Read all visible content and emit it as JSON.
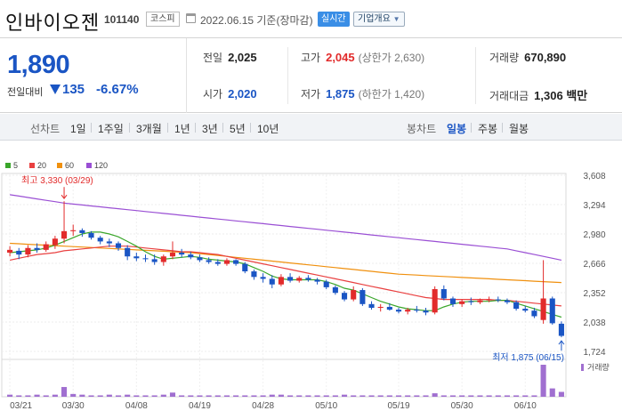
{
  "header": {
    "stock_name": "인바이오젠",
    "stock_code": "101140",
    "market": "코스피",
    "date": "2022.06.15 기준(장마감)",
    "realtime_label": "실시간",
    "company_info_label": "기업개요"
  },
  "quote": {
    "price": "1,890",
    "change_label": "전일대비",
    "change_value": "135",
    "change_pct": "-6.67%",
    "prev_close_label": "전일",
    "prev_close": "2,025",
    "open_label": "시가",
    "open": "2,020",
    "high_label": "고가",
    "high": "2,045",
    "upper_limit": "(상한가 2,630)",
    "low_label": "저가",
    "low": "1,875",
    "lower_limit": "(하한가 1,420)",
    "volume_label": "거래량",
    "volume": "670,890",
    "amount_label": "거래대금",
    "amount": "1,306 백만"
  },
  "period_tabs": {
    "line_label": "선차트",
    "items": [
      "1일",
      "1주일",
      "3개월",
      "1년",
      "3년",
      "5년",
      "10년"
    ],
    "candle_label": "봉차트",
    "candle_items": [
      "일봉",
      "주봉",
      "월봉"
    ],
    "active_candle": "일봉"
  },
  "colors": {
    "up": "#e22b2b",
    "down": "#1a55c4",
    "ma5": "#3aa62a",
    "ma20": "#e94040",
    "ma60": "#f0900e",
    "ma120": "#9a4fd4",
    "volume": "#a06fd0"
  },
  "chart_data": {
    "type": "candlestick",
    "legend": [
      {
        "name": "5",
        "color": "#3aa62a"
      },
      {
        "name": "20",
        "color": "#e94040"
      },
      {
        "name": "60",
        "color": "#f0900e"
      },
      {
        "name": "120",
        "color": "#9a4fd4"
      }
    ],
    "y_ticks": [
      3608,
      3294,
      2980,
      2666,
      2352,
      2038,
      1724
    ],
    "ylim": [
      1724,
      3608
    ],
    "x_ticks": [
      "03/21",
      "03/30",
      "04/08",
      "04/19",
      "04/28",
      "05/10",
      "05/19",
      "05/30",
      "06/10"
    ],
    "annotation_high": "최고 3,330 (03/29)",
    "annotation_low": "최저 1,875 (06/15)",
    "volume_label": "거래량",
    "candles": [
      [
        2780,
        2850,
        2740,
        2810
      ],
      [
        2800,
        2830,
        2710,
        2760
      ],
      [
        2760,
        2860,
        2730,
        2830
      ],
      [
        2830,
        2880,
        2780,
        2810
      ],
      [
        2810,
        2900,
        2790,
        2870
      ],
      [
        2860,
        2960,
        2820,
        2930
      ],
      [
        2930,
        3330,
        2880,
        3010
      ],
      [
        3010,
        3080,
        2960,
        3020
      ],
      [
        3020,
        3040,
        2950,
        2990
      ],
      [
        2990,
        3010,
        2920,
        2940
      ],
      [
        2940,
        2960,
        2870,
        2900
      ],
      [
        2900,
        2930,
        2840,
        2880
      ],
      [
        2880,
        2900,
        2800,
        2830
      ],
      [
        2830,
        2860,
        2700,
        2740
      ],
      [
        2740,
        2780,
        2690,
        2720
      ],
      [
        2720,
        2760,
        2680,
        2710
      ],
      [
        2710,
        2760,
        2650,
        2680
      ],
      [
        2680,
        2760,
        2640,
        2740
      ],
      [
        2740,
        2900,
        2710,
        2780
      ],
      [
        2780,
        2820,
        2730,
        2760
      ],
      [
        2760,
        2790,
        2710,
        2730
      ],
      [
        2730,
        2760,
        2680,
        2700
      ],
      [
        2700,
        2730,
        2660,
        2680
      ],
      [
        2680,
        2710,
        2640,
        2660
      ],
      [
        2660,
        2720,
        2640,
        2700
      ],
      [
        2700,
        2710,
        2640,
        2660
      ],
      [
        2660,
        2680,
        2560,
        2580
      ],
      [
        2580,
        2600,
        2490,
        2520
      ],
      [
        2520,
        2560,
        2460,
        2500
      ],
      [
        2500,
        2540,
        2400,
        2440
      ],
      [
        2440,
        2550,
        2420,
        2520
      ],
      [
        2520,
        2560,
        2460,
        2480
      ],
      [
        2480,
        2530,
        2460,
        2510
      ],
      [
        2510,
        2540,
        2470,
        2490
      ],
      [
        2490,
        2510,
        2440,
        2470
      ],
      [
        2470,
        2490,
        2390,
        2410
      ],
      [
        2410,
        2430,
        2330,
        2350
      ],
      [
        2350,
        2370,
        2260,
        2280
      ],
      [
        2280,
        2420,
        2260,
        2380
      ],
      [
        2380,
        2400,
        2210,
        2230
      ],
      [
        2230,
        2260,
        2170,
        2190
      ],
      [
        2190,
        2230,
        2150,
        2200
      ],
      [
        2200,
        2240,
        2160,
        2170
      ],
      [
        2170,
        2190,
        2130,
        2150
      ],
      [
        2150,
        2190,
        2120,
        2170
      ],
      [
        2170,
        2210,
        2140,
        2160
      ],
      [
        2160,
        2190,
        2110,
        2140
      ],
      [
        2140,
        2420,
        2120,
        2390
      ],
      [
        2390,
        2430,
        2270,
        2290
      ],
      [
        2290,
        2310,
        2200,
        2230
      ],
      [
        2230,
        2280,
        2200,
        2260
      ],
      [
        2260,
        2300,
        2220,
        2250
      ],
      [
        2250,
        2290,
        2230,
        2270
      ],
      [
        2270,
        2310,
        2250,
        2280
      ],
      [
        2280,
        2310,
        2250,
        2270
      ],
      [
        2270,
        2290,
        2230,
        2250
      ],
      [
        2250,
        2270,
        2160,
        2180
      ],
      [
        2180,
        2210,
        2140,
        2160
      ],
      [
        2160,
        2190,
        2080,
        2100
      ],
      [
        2060,
        2700,
        2020,
        2290
      ],
      [
        2290,
        2310,
        2010,
        2025
      ],
      [
        2020,
        2045,
        1875,
        1890
      ]
    ],
    "ma5": [
      2780,
      2790,
      2800,
      2810,
      2830,
      2860,
      2900,
      2940,
      2980,
      3000,
      3000,
      2980,
      2950,
      2900,
      2850,
      2790,
      2740,
      2710,
      2720,
      2730,
      2740,
      2730,
      2710,
      2700,
      2690,
      2680,
      2660,
      2620,
      2580,
      2530,
      2500,
      2490,
      2490,
      2490,
      2490,
      2470,
      2440,
      2400,
      2380,
      2340,
      2300,
      2260,
      2230,
      2200,
      2180,
      2170,
      2160,
      2160,
      2200,
      2230,
      2250,
      2260,
      2260,
      2260,
      2270,
      2270,
      2240,
      2210,
      2180,
      2150,
      2120,
      2090
    ],
    "ma20": [
      2700,
      2720,
      2740,
      2760,
      2770,
      2780,
      2800,
      2810,
      2820,
      2830,
      2840,
      2850,
      2850,
      2850,
      2840,
      2830,
      2820,
      2810,
      2800,
      2790,
      2790,
      2780,
      2770,
      2760,
      2740,
      2720,
      2700,
      2680,
      2660,
      2640,
      2620,
      2600,
      2580,
      2560,
      2540,
      2520,
      2500,
      2480,
      2460,
      2440,
      2420,
      2400,
      2380,
      2360,
      2340,
      2320,
      2300,
      2290,
      2280,
      2280,
      2280,
      2280,
      2280,
      2280,
      2270,
      2270,
      2260,
      2250,
      2240,
      2230,
      2220,
      2210
    ],
    "ma60": [
      2880,
      2875,
      2870,
      2865,
      2860,
      2855,
      2850,
      2845,
      2840,
      2835,
      2830,
      2825,
      2820,
      2815,
      2810,
      2805,
      2800,
      2795,
      2790,
      2785,
      2780,
      2770,
      2760,
      2750,
      2740,
      2730,
      2720,
      2710,
      2700,
      2690,
      2680,
      2670,
      2660,
      2650,
      2640,
      2630,
      2620,
      2610,
      2600,
      2590,
      2580,
      2570,
      2560,
      2550,
      2545,
      2540,
      2535,
      2530,
      2525,
      2520,
      2515,
      2510,
      2505,
      2500,
      2495,
      2490,
      2485,
      2480,
      2475,
      2470,
      2465,
      2460
    ],
    "ma120": [
      3400,
      3385,
      3370,
      3355,
      3340,
      3325,
      3310,
      3300,
      3290,
      3280,
      3270,
      3260,
      3250,
      3240,
      3230,
      3220,
      3210,
      3200,
      3190,
      3180,
      3170,
      3160,
      3150,
      3140,
      3130,
      3120,
      3110,
      3100,
      3090,
      3080,
      3070,
      3060,
      3050,
      3040,
      3030,
      3020,
      3010,
      3000,
      2990,
      2980,
      2970,
      2960,
      2950,
      2940,
      2930,
      2920,
      2910,
      2900,
      2890,
      2880,
      2870,
      2860,
      2850,
      2840,
      2830,
      2820,
      2800,
      2780,
      2760,
      2740,
      2720,
      2700
    ],
    "volume": [
      3,
      2,
      2,
      3,
      2,
      3,
      14,
      4,
      3,
      2,
      2,
      3,
      2,
      3,
      2,
      2,
      2,
      3,
      6,
      2,
      2,
      2,
      2,
      2,
      2,
      2,
      2,
      2,
      2,
      3,
      3,
      2,
      2,
      2,
      2,
      2,
      2,
      3,
      2,
      2,
      2,
      2,
      2,
      2,
      2,
      2,
      2,
      5,
      2,
      2,
      2,
      2,
      2,
      2,
      2,
      2,
      2,
      2,
      2,
      46,
      12,
      7
    ]
  }
}
